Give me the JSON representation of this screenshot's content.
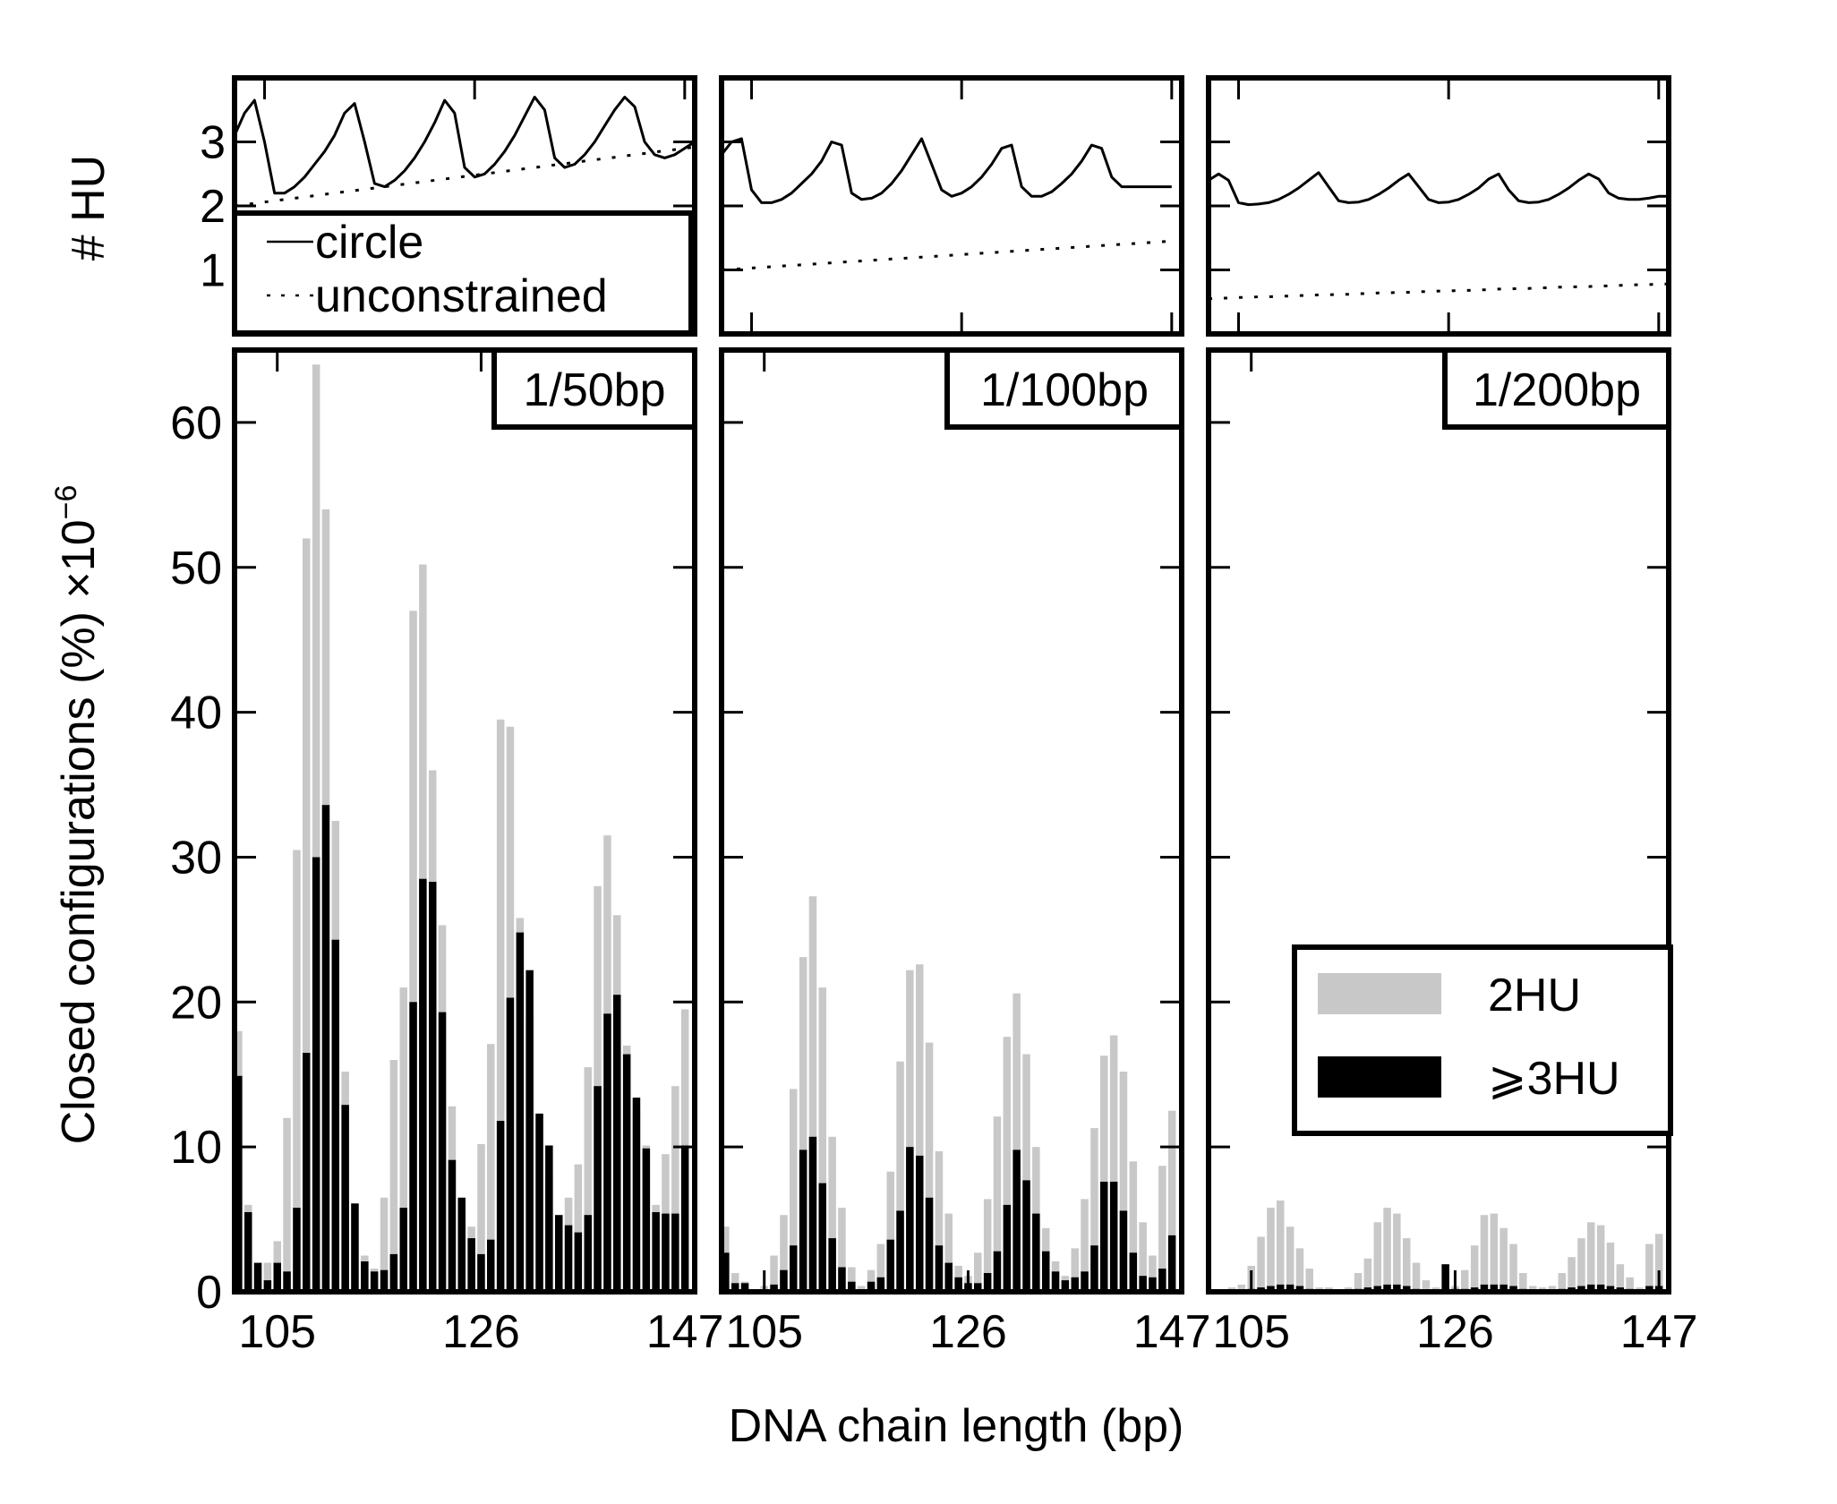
{
  "figure": {
    "ylabel_top": "# HU",
    "ylabel_bottom": "Closed configurations (%) ×10",
    "ylabel_bottom_exp": "−6",
    "xlabel": "DNA chain length (bp)",
    "x_tick_labels": [
      "105",
      "126",
      "147"
    ],
    "top_y_tick_labels": [
      "1",
      "2",
      "3"
    ],
    "bottom_y_tick_labels": [
      "0",
      "10",
      "20",
      "30",
      "40",
      "50",
      "60"
    ],
    "line_legend": {
      "solid": "circle",
      "dotted": "unconstrained"
    },
    "bar_legend": {
      "light": "2HU",
      "dark": "⩾3HU"
    },
    "colors": {
      "light_bar": "#c8c8c8",
      "dark_bar": "#000000",
      "frame": "#000000"
    }
  },
  "chart_data": [
    {
      "type": "line",
      "panel": "1/50bp",
      "ylabel": "# HU",
      "xlim": [
        102,
        148
      ],
      "ylim": [
        0,
        4
      ],
      "x": [
        102,
        103,
        104,
        105,
        106,
        107,
        108,
        109,
        110,
        111,
        112,
        113,
        114,
        115,
        116,
        117,
        118,
        119,
        120,
        121,
        122,
        123,
        124,
        125,
        126,
        127,
        128,
        129,
        130,
        131,
        132,
        133,
        134,
        135,
        136,
        137,
        138,
        139,
        140,
        141,
        142,
        143,
        144,
        145,
        146,
        147,
        148
      ],
      "series": [
        {
          "name": "circle",
          "style": "solid",
          "values": [
            3.1,
            3.45,
            3.65,
            3.0,
            2.2,
            2.2,
            2.3,
            2.45,
            2.65,
            2.85,
            3.1,
            3.45,
            3.6,
            3.0,
            2.35,
            2.3,
            2.4,
            2.55,
            2.75,
            3.0,
            3.3,
            3.65,
            3.45,
            2.6,
            2.45,
            2.5,
            2.65,
            2.85,
            3.1,
            3.4,
            3.7,
            3.5,
            2.75,
            2.6,
            2.65,
            2.8,
            3.0,
            3.25,
            3.5,
            3.7,
            3.55,
            3.0,
            2.8,
            2.75,
            2.8,
            2.9,
            3.0
          ]
        },
        {
          "name": "unconstrained",
          "style": "dotted",
          "values": [
            2.0,
            2.02,
            2.04,
            2.06,
            2.08,
            2.1,
            2.12,
            2.14,
            2.16,
            2.18,
            2.2,
            2.22,
            2.24,
            2.26,
            2.28,
            2.3,
            2.32,
            2.34,
            2.36,
            2.38,
            2.4,
            2.42,
            2.44,
            2.46,
            2.48,
            2.5,
            2.52,
            2.54,
            2.56,
            2.58,
            2.6,
            2.62,
            2.64,
            2.66,
            2.68,
            2.7,
            2.72,
            2.74,
            2.76,
            2.78,
            2.8,
            2.82,
            2.84,
            2.86,
            2.88,
            2.9,
            2.92
          ]
        }
      ]
    },
    {
      "type": "line",
      "panel": "1/100bp",
      "ylabel": "# HU",
      "xlim": [
        102,
        148
      ],
      "ylim": [
        0,
        4
      ],
      "x": [
        102,
        103,
        104,
        105,
        106,
        107,
        108,
        109,
        110,
        111,
        112,
        113,
        114,
        115,
        116,
        117,
        118,
        119,
        120,
        121,
        122,
        123,
        124,
        125,
        126,
        127,
        128,
        129,
        130,
        131,
        132,
        133,
        134,
        135,
        136,
        137,
        138,
        139,
        140,
        141,
        142,
        143,
        144,
        145,
        146,
        147
      ],
      "series": [
        {
          "name": "circle",
          "style": "solid",
          "values": [
            2.8,
            3.0,
            3.05,
            2.25,
            2.05,
            2.05,
            2.1,
            2.2,
            2.35,
            2.5,
            2.7,
            3.0,
            2.95,
            2.2,
            2.1,
            2.12,
            2.2,
            2.35,
            2.55,
            2.8,
            3.05,
            2.65,
            2.25,
            2.15,
            2.2,
            2.3,
            2.45,
            2.65,
            2.9,
            2.95,
            2.3,
            2.15,
            2.15,
            2.22,
            2.35,
            2.5,
            2.7,
            2.95,
            2.9,
            2.45,
            2.3,
            2.3,
            2.3,
            2.3,
            2.3,
            2.3
          ]
        },
        {
          "name": "unconstrained",
          "style": "dotted",
          "values": [
            1.0,
            1.01,
            1.02,
            1.03,
            1.04,
            1.05,
            1.06,
            1.07,
            1.08,
            1.09,
            1.1,
            1.11,
            1.12,
            1.13,
            1.14,
            1.15,
            1.16,
            1.17,
            1.18,
            1.19,
            1.2,
            1.21,
            1.22,
            1.23,
            1.24,
            1.25,
            1.26,
            1.27,
            1.28,
            1.29,
            1.3,
            1.31,
            1.32,
            1.33,
            1.34,
            1.35,
            1.36,
            1.37,
            1.38,
            1.39,
            1.4,
            1.41,
            1.42,
            1.43,
            1.44,
            1.45
          ]
        }
      ]
    },
    {
      "type": "line",
      "panel": "1/200bp",
      "ylabel": "# HU",
      "xlim": [
        102,
        148
      ],
      "ylim": [
        0,
        4
      ],
      "x": [
        102,
        103,
        104,
        105,
        106,
        107,
        108,
        109,
        110,
        111,
        112,
        113,
        114,
        115,
        116,
        117,
        118,
        119,
        120,
        121,
        122,
        123,
        124,
        125,
        126,
        127,
        128,
        129,
        130,
        131,
        132,
        133,
        134,
        135,
        136,
        137,
        138,
        139,
        140,
        141,
        142,
        143,
        144,
        145,
        146,
        147,
        148
      ],
      "series": [
        {
          "name": "circle",
          "style": "solid",
          "values": [
            2.4,
            2.5,
            2.4,
            2.05,
            2.02,
            2.03,
            2.05,
            2.1,
            2.18,
            2.28,
            2.4,
            2.52,
            2.3,
            2.08,
            2.05,
            2.06,
            2.1,
            2.18,
            2.28,
            2.4,
            2.5,
            2.3,
            2.1,
            2.05,
            2.06,
            2.1,
            2.18,
            2.28,
            2.42,
            2.5,
            2.25,
            2.08,
            2.05,
            2.06,
            2.1,
            2.18,
            2.28,
            2.4,
            2.5,
            2.42,
            2.2,
            2.12,
            2.1,
            2.1,
            2.12,
            2.15,
            2.15
          ]
        },
        {
          "name": "unconstrained",
          "style": "dotted",
          "values": [
            0.55,
            0.56,
            0.56,
            0.57,
            0.57,
            0.58,
            0.58,
            0.59,
            0.59,
            0.6,
            0.6,
            0.61,
            0.61,
            0.62,
            0.62,
            0.63,
            0.63,
            0.64,
            0.64,
            0.65,
            0.65,
            0.66,
            0.66,
            0.67,
            0.67,
            0.68,
            0.68,
            0.69,
            0.69,
            0.7,
            0.7,
            0.71,
            0.71,
            0.72,
            0.72,
            0.73,
            0.73,
            0.74,
            0.74,
            0.75,
            0.75,
            0.76,
            0.76,
            0.77,
            0.77,
            0.78,
            0.78
          ]
        }
      ]
    },
    {
      "type": "bar",
      "panel": "1/50bp",
      "title": "1/50bp",
      "xlabel": "DNA chain length (bp)",
      "ylabel": "Closed configurations (%) ×10−6",
      "xlim": [
        100.6,
        148.0
      ],
      "ylim": [
        0,
        65
      ],
      "x": [
        101,
        102,
        103,
        104,
        105,
        106,
        107,
        108,
        109,
        110,
        111,
        112,
        113,
        114,
        115,
        116,
        117,
        118,
        119,
        120,
        121,
        122,
        123,
        124,
        125,
        126,
        127,
        128,
        129,
        130,
        131,
        132,
        133,
        134,
        135,
        136,
        137,
        138,
        139,
        140,
        141,
        142,
        143,
        144,
        145,
        146,
        147
      ],
      "series": [
        {
          "name": "2HU",
          "values": [
            18,
            6,
            2,
            2,
            3.5,
            12,
            30.5,
            52,
            64,
            54,
            32.5,
            15.2,
            6.1,
            2.5,
            1.6,
            6.5,
            16,
            21,
            47,
            50.2,
            36,
            25.3,
            12.8,
            6.5,
            4.5,
            10.2,
            17.1,
            39.5,
            39,
            25.8,
            19,
            12.2,
            7.9,
            4.6,
            6.5,
            8.8,
            15.5,
            28,
            31.5,
            26,
            17,
            12.6,
            10.1,
            6,
            9.5,
            14.2,
            19.5
          ]
        },
        {
          "name": "⩾3HU",
          "values": [
            14.9,
            5.5,
            2,
            0.8,
            2,
            1.4,
            5.8,
            16.5,
            30,
            33.6,
            24.3,
            12.9,
            6.1,
            2.1,
            1.4,
            1.5,
            2.6,
            5.8,
            20,
            28.5,
            28.3,
            19.3,
            9.1,
            6.5,
            3.7,
            2.6,
            3.6,
            11.8,
            20.3,
            24.8,
            22.2,
            12.3,
            10.1,
            5.3,
            4.6,
            4.1,
            5.3,
            14.2,
            19.2,
            20.5,
            16.4,
            13.4,
            9.9,
            5.5,
            5.4,
            5.4,
            10.1
          ]
        }
      ]
    },
    {
      "type": "bar",
      "panel": "1/100bp",
      "title": "1/100bp",
      "xlabel": "DNA chain length (bp)",
      "ylabel": "Closed configurations (%) ×10−6",
      "xlim": [
        100.6,
        148.0
      ],
      "ylim": [
        0,
        65
      ],
      "x": [
        101,
        102,
        103,
        104,
        105,
        106,
        107,
        108,
        109,
        110,
        111,
        112,
        113,
        114,
        115,
        116,
        117,
        118,
        119,
        120,
        121,
        122,
        123,
        124,
        125,
        126,
        127,
        128,
        129,
        130,
        131,
        132,
        133,
        134,
        135,
        136,
        137,
        138,
        139,
        140,
        141,
        142,
        143,
        144,
        145,
        146,
        147
      ],
      "series": [
        {
          "name": "2HU",
          "values": [
            4.5,
            1.3,
            0.7,
            0.2,
            0.4,
            2.5,
            5.3,
            14,
            23.1,
            27.3,
            21,
            10.7,
            5.8,
            1.7,
            0.4,
            1.5,
            3.3,
            8.3,
            15.9,
            22.2,
            22.6,
            17.2,
            9.7,
            5.4,
            1.8,
            1.1,
            2.7,
            6.4,
            12.1,
            17.6,
            20.6,
            16.4,
            10,
            4.4,
            2.1,
            1.1,
            3,
            6.4,
            11.3,
            16.3,
            17.7,
            15.2,
            9,
            4.8,
            2.5,
            8.7,
            12.5
          ]
        },
        {
          "name": "⩾3HU",
          "values": [
            2.7,
            0.6,
            0.6,
            0,
            0,
            0.5,
            1.5,
            3.2,
            9.8,
            10.7,
            7.5,
            3.7,
            1.7,
            0.7,
            0,
            0.7,
            1,
            3.6,
            5.6,
            10,
            9.4,
            6.5,
            3.2,
            2,
            1,
            0.6,
            0.6,
            1.3,
            2.8,
            6,
            9.8,
            7.7,
            5.4,
            2.8,
            1.4,
            0.8,
            1,
            1.4,
            3.2,
            7.6,
            7.6,
            5.6,
            2.7,
            1.1,
            1,
            1.6,
            3.9
          ]
        }
      ]
    },
    {
      "type": "bar",
      "panel": "1/200bp",
      "title": "1/200bp",
      "xlabel": "DNA chain length (bp)",
      "ylabel": "Closed configurations (%) ×10−6",
      "xlim": [
        100.6,
        148.0
      ],
      "ylim": [
        0,
        65
      ],
      "x": [
        101,
        102,
        103,
        104,
        105,
        106,
        107,
        108,
        109,
        110,
        111,
        112,
        113,
        114,
        115,
        116,
        117,
        118,
        119,
        120,
        121,
        122,
        123,
        124,
        125,
        126,
        127,
        128,
        129,
        130,
        131,
        132,
        133,
        134,
        135,
        136,
        137,
        138,
        139,
        140,
        141,
        142,
        143,
        144,
        145,
        146,
        147
      ],
      "series": [
        {
          "name": "2HU",
          "values": [
            0.2,
            0.2,
            0.3,
            0.5,
            1.8,
            3.8,
            5.8,
            6.3,
            4.5,
            3,
            1.6,
            0.3,
            0.3,
            0.2,
            0.3,
            1.3,
            2.3,
            4.8,
            5.8,
            5.4,
            3.7,
            2,
            0.8,
            0.3,
            0.3,
            0.4,
            1.5,
            3.2,
            5.3,
            5.4,
            4.4,
            3.3,
            1.3,
            0.4,
            0.3,
            0.4,
            1.3,
            2.4,
            3.7,
            4.8,
            4.6,
            3.4,
            1.9,
            1,
            0.3,
            3.3,
            4
          ]
        },
        {
          "name": "⩾3HU",
          "values": [
            0.1,
            0.1,
            0.1,
            0.1,
            0.2,
            0.3,
            0.4,
            0.5,
            0.5,
            0.4,
            0.2,
            0.1,
            0.1,
            0.1,
            0.1,
            0.2,
            0.3,
            0.4,
            0.5,
            0.5,
            0.4,
            0.2,
            0.1,
            0.1,
            1.9,
            0.2,
            0.2,
            0.3,
            0.5,
            0.5,
            0.5,
            0.4,
            0.2,
            0.1,
            0.1,
            0.1,
            0.2,
            0.3,
            0.4,
            0.5,
            0.5,
            0.4,
            0.3,
            0.2,
            0.1,
            0.4,
            0.4
          ]
        }
      ]
    }
  ]
}
